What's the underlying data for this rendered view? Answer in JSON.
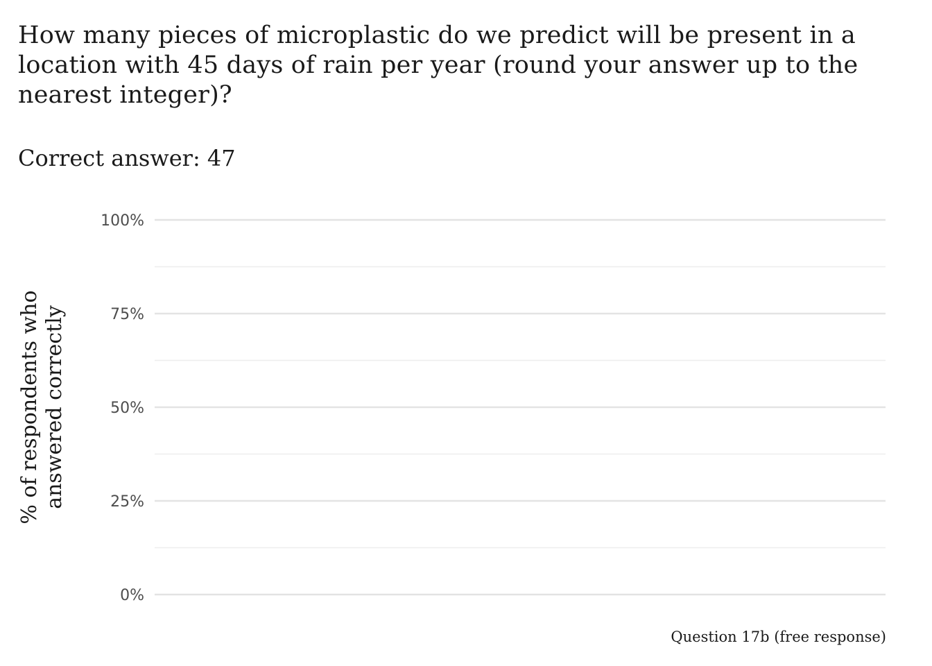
{
  "title": "How many pieces of microplastic do we predict will be present in a location with 45 days of rain per year (round your answer up to the nearest integer)?",
  "subtitle": "Correct answer: 47",
  "caption": "Question 17b (free response)",
  "chart_data": {
    "type": "bar",
    "title": "How many pieces of microplastic do we predict will be present in a location with 45 days of rain per year (round your answer up to the nearest integer)?",
    "subtitle": "Correct answer: 47",
    "xlabel": "Question 17b (free response)",
    "ylabel_lines": [
      "% of respondents who",
      "answered correctly"
    ],
    "ylim": [
      0,
      1
    ],
    "y_ticks": [
      {
        "value": 0,
        "label": "0%"
      },
      {
        "value": 0.25,
        "label": "25%"
      },
      {
        "value": 0.5,
        "label": "50%"
      },
      {
        "value": 0.75,
        "label": "75%"
      },
      {
        "value": 1,
        "label": "100%"
      }
    ],
    "y_minor_ticks": [
      0.125,
      0.375,
      0.625,
      0.875
    ],
    "categories": [],
    "values": [],
    "grid": true,
    "legend": "none",
    "colors": {
      "major_grid": "#e3e3e3",
      "minor_grid": "#eeeeee",
      "tick_label": "#4d4d4d"
    }
  }
}
